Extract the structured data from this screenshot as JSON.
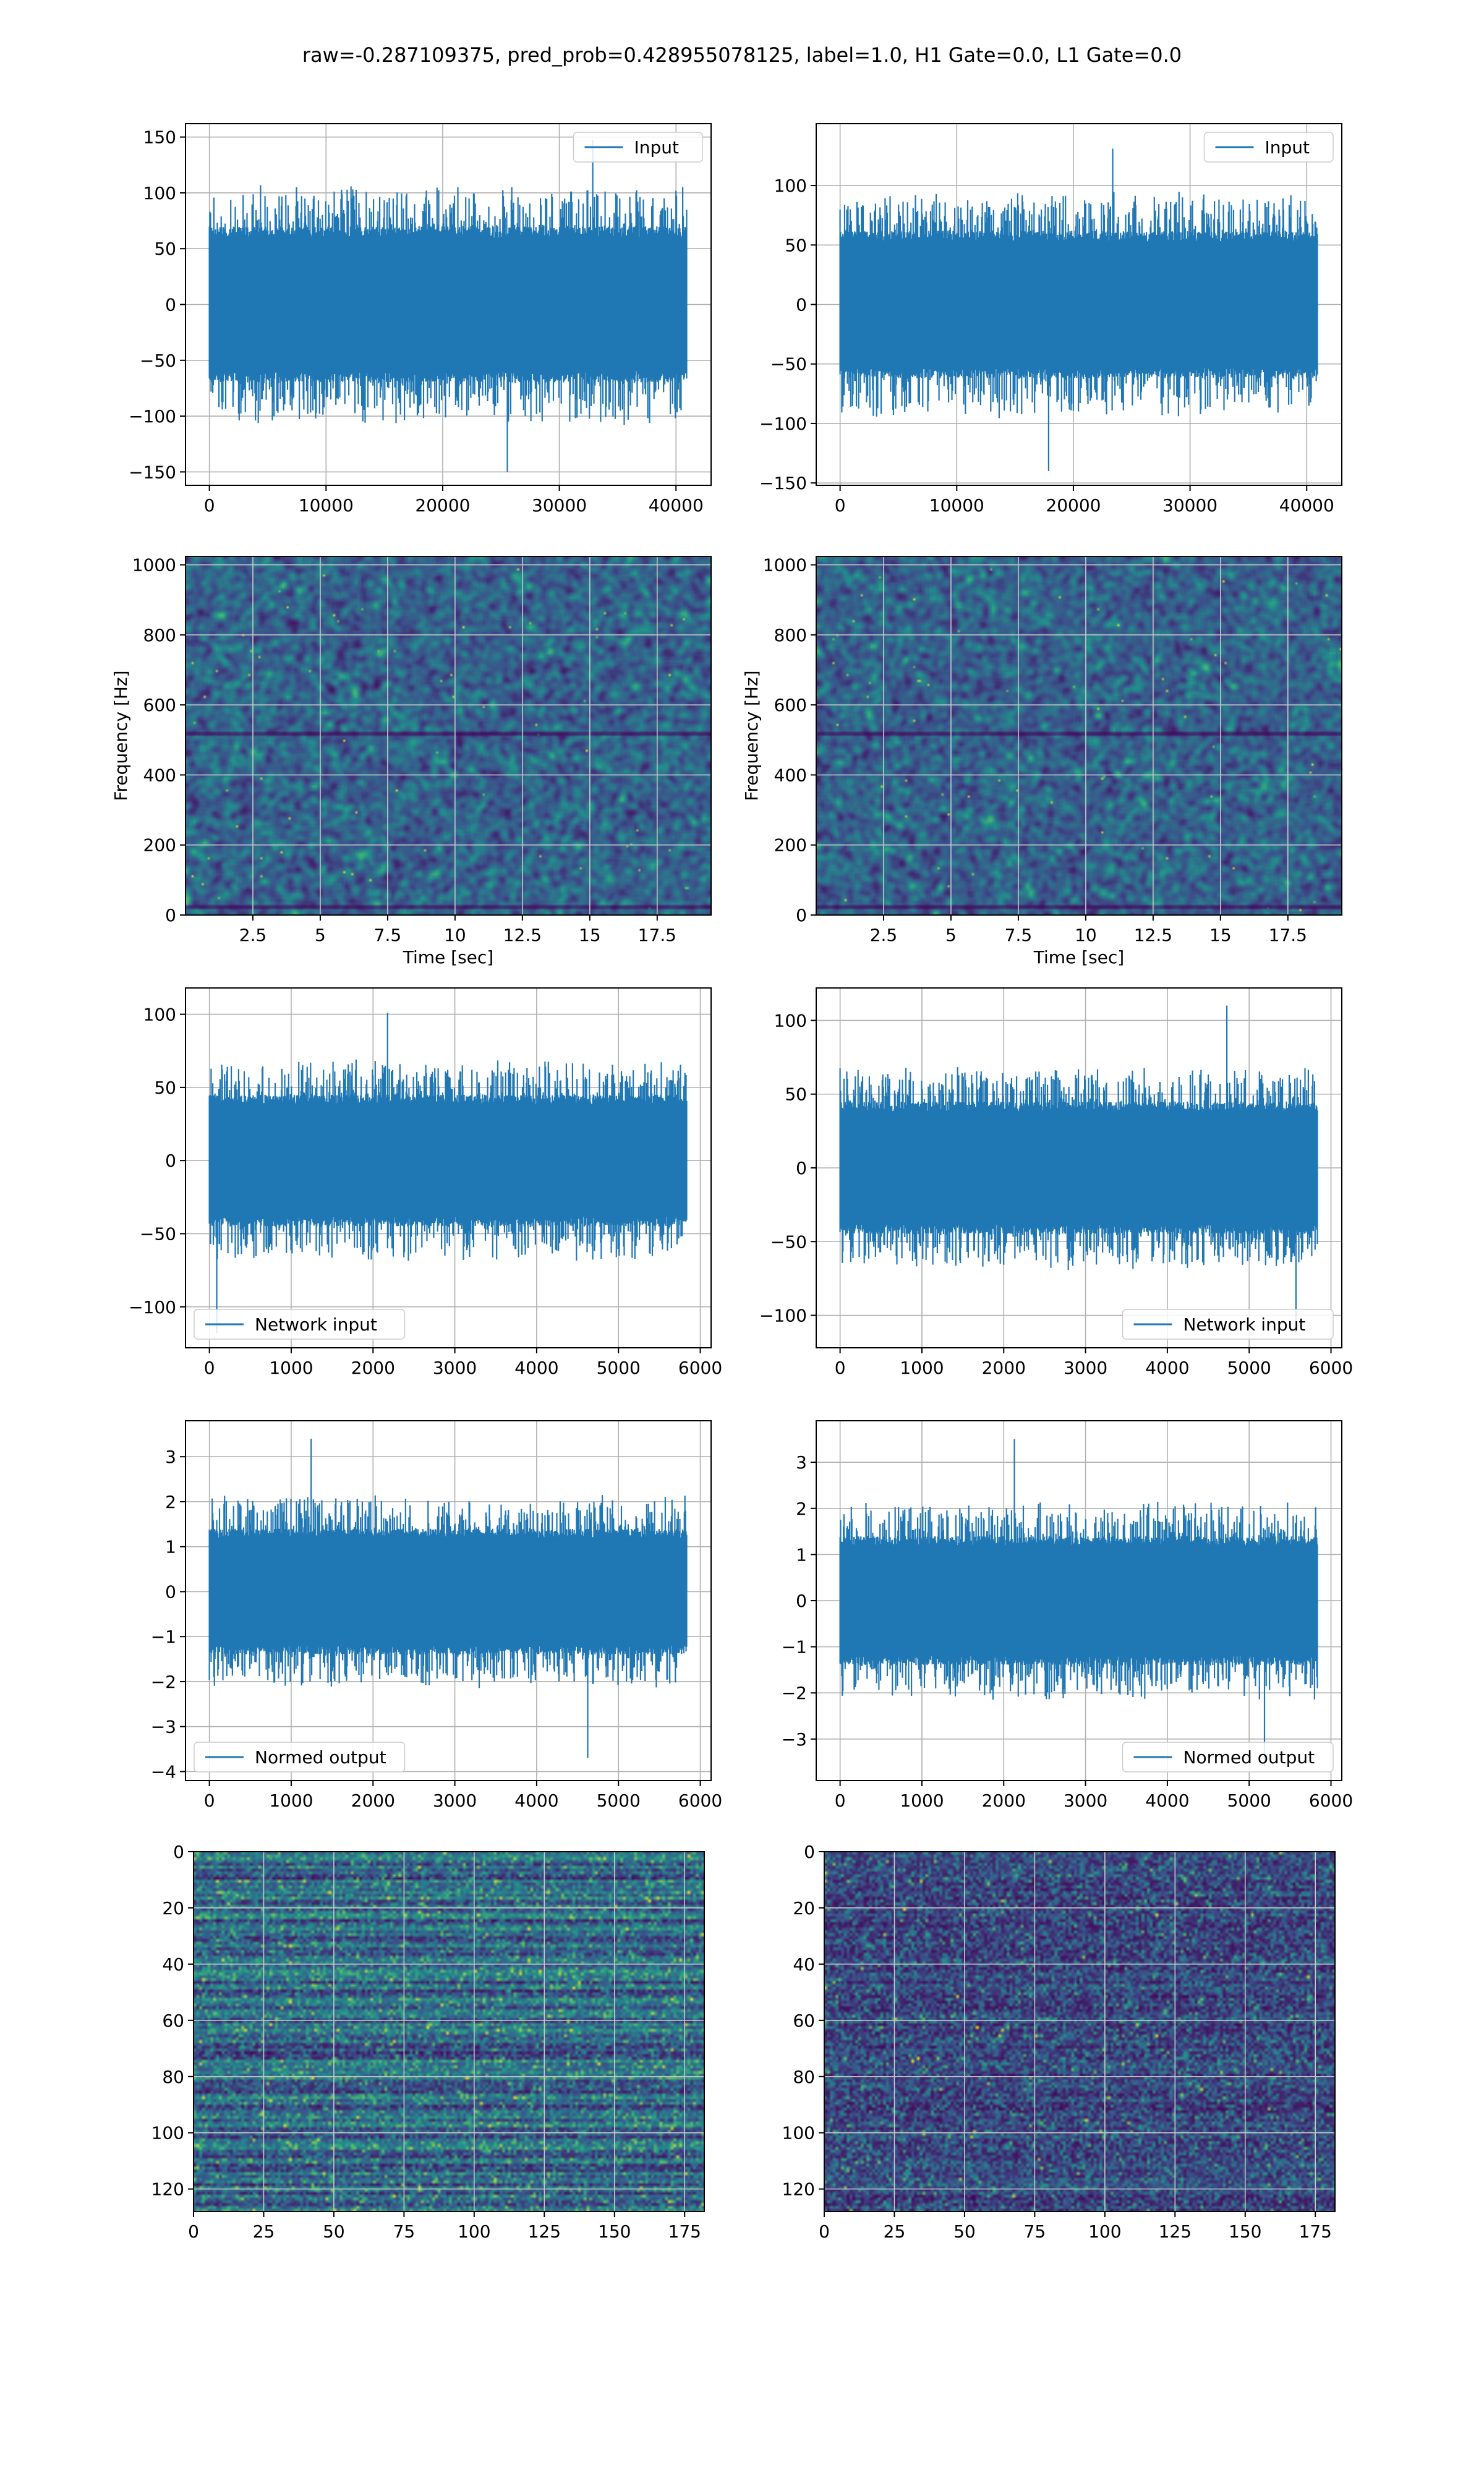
{
  "figure": {
    "suptitle": "raw=-0.287109375, pred_prob=0.428955078125, label=1.0, H1 Gate=0.0, L1 Gate=0.0",
    "colors": {
      "line": "#1f77b4",
      "grid": "#b0b0b0",
      "axes": "#000000"
    }
  },
  "chart_data": [
    {
      "id": "input-left",
      "type": "line",
      "series": [
        {
          "name": "Input",
          "n_points": 40960,
          "y_min": -150,
          "y_max": 147,
          "typical_amplitude": 70
        }
      ],
      "xlim": [
        -2048,
        43008
      ],
      "ylim": [
        -162,
        162
      ],
      "xticks": [
        0,
        10000,
        20000,
        30000,
        40000
      ],
      "yticks": [
        -150,
        -100,
        -50,
        0,
        50,
        100,
        150
      ],
      "legend": "upper right",
      "grid": true,
      "xlabel": "",
      "ylabel": ""
    },
    {
      "id": "input-right",
      "type": "line",
      "series": [
        {
          "name": "Input",
          "n_points": 40960,
          "y_min": -140,
          "y_max": 131,
          "typical_amplitude": 62
        }
      ],
      "xlim": [
        -2048,
        43008
      ],
      "ylim": [
        -152,
        152
      ],
      "xticks": [
        0,
        10000,
        20000,
        30000,
        40000
      ],
      "yticks": [
        -150,
        -100,
        -50,
        0,
        50,
        100
      ],
      "legend": "upper right",
      "grid": true,
      "xlabel": "",
      "ylabel": ""
    },
    {
      "id": "spectrogram-left",
      "type": "heatmap",
      "colormap": "viridis",
      "xlim": [
        0,
        19.5
      ],
      "ylim": [
        0,
        1024
      ],
      "xticks": [
        2.5,
        5.0,
        7.5,
        10.0,
        12.5,
        15.0,
        17.5
      ],
      "yticks": [
        0,
        200,
        400,
        600,
        800,
        1000
      ],
      "xlabel": "Time [sec]",
      "ylabel": "Frequency [Hz]",
      "grid": true
    },
    {
      "id": "spectrogram-right",
      "type": "heatmap",
      "colormap": "viridis",
      "xlim": [
        0,
        19.5
      ],
      "ylim": [
        0,
        1024
      ],
      "xticks": [
        2.5,
        5.0,
        7.5,
        10.0,
        12.5,
        15.0,
        17.5
      ],
      "yticks": [
        0,
        200,
        400,
        600,
        800,
        1000
      ],
      "xlabel": "Time [sec]",
      "ylabel": "Frequency [Hz]",
      "grid": true
    },
    {
      "id": "network-left",
      "type": "line",
      "series": [
        {
          "name": "Network input",
          "n_points": 5840,
          "y_min": -118,
          "y_max": 101,
          "typical_amplitude": 45
        }
      ],
      "xlim": [
        -292,
        6132
      ],
      "ylim": [
        -128,
        118
      ],
      "xticks": [
        0,
        1000,
        2000,
        3000,
        4000,
        5000,
        6000
      ],
      "yticks": [
        -100,
        -50,
        0,
        50,
        100
      ],
      "legend": "lower left",
      "grid": true,
      "xlabel": "",
      "ylabel": ""
    },
    {
      "id": "network-right",
      "type": "line",
      "series": [
        {
          "name": "Network input",
          "n_points": 5840,
          "y_min": -112,
          "y_max": 110,
          "typical_amplitude": 45
        }
      ],
      "xlim": [
        -292,
        6132
      ],
      "ylim": [
        -122,
        122
      ],
      "xticks": [
        0,
        1000,
        2000,
        3000,
        4000,
        5000,
        6000
      ],
      "yticks": [
        -100,
        -50,
        0,
        50,
        100
      ],
      "legend": "lower right",
      "grid": true,
      "xlabel": "",
      "ylabel": ""
    },
    {
      "id": "normed-left",
      "type": "line",
      "series": [
        {
          "name": "Normed output",
          "n_points": 5840,
          "y_min": -3.7,
          "y_max": 3.4,
          "typical_amplitude": 1.4
        }
      ],
      "xlim": [
        -292,
        6132
      ],
      "ylim": [
        -4.2,
        3.8
      ],
      "xticks": [
        0,
        1000,
        2000,
        3000,
        4000,
        5000,
        6000
      ],
      "yticks": [
        -4,
        -3,
        -2,
        -1,
        0,
        1,
        2,
        3
      ],
      "legend": "lower left",
      "grid": true,
      "xlabel": "",
      "ylabel": ""
    },
    {
      "id": "normed-right",
      "type": "line",
      "series": [
        {
          "name": "Normed output",
          "n_points": 5840,
          "y_min": -3.6,
          "y_max": 3.5,
          "typical_amplitude": 1.4
        }
      ],
      "xlim": [
        -292,
        6132
      ],
      "ylim": [
        -3.9,
        3.9
      ],
      "xticks": [
        0,
        1000,
        2000,
        3000,
        4000,
        5000,
        6000
      ],
      "yticks": [
        -3,
        -2,
        -1,
        0,
        1,
        2,
        3
      ],
      "legend": "lower right",
      "grid": true,
      "xlabel": "",
      "ylabel": ""
    },
    {
      "id": "image-left",
      "type": "heatmap",
      "colormap": "viridis",
      "n_rows": 128,
      "n_cols": 182,
      "xlim": [
        0,
        182
      ],
      "ylim": [
        128,
        0
      ],
      "xticks": [
        0,
        25,
        50,
        75,
        100,
        125,
        150,
        175
      ],
      "yticks": [
        0,
        20,
        40,
        60,
        80,
        100,
        120
      ],
      "grid": true,
      "y_inverted": true
    },
    {
      "id": "image-right",
      "type": "heatmap",
      "colormap": "viridis",
      "n_rows": 128,
      "n_cols": 182,
      "xlim": [
        0,
        182
      ],
      "ylim": [
        128,
        0
      ],
      "xticks": [
        0,
        25,
        50,
        75,
        100,
        125,
        150,
        175
      ],
      "yticks": [
        0,
        20,
        40,
        60,
        80,
        100,
        120
      ],
      "grid": true,
      "y_inverted": true
    }
  ]
}
